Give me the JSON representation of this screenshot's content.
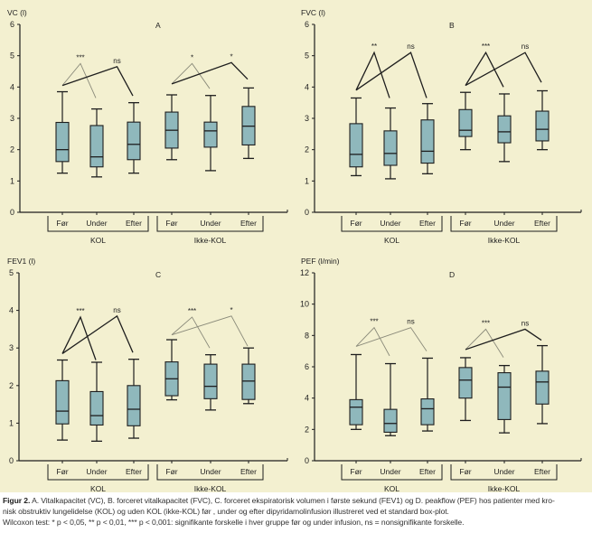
{
  "chart_data": [
    {
      "type": "box",
      "panel": "A",
      "ylabel": "VC (l)",
      "ylim": [
        0,
        6
      ],
      "yticks": [
        0,
        1,
        2,
        3,
        4,
        5,
        6
      ],
      "groups": [
        "KOL",
        "Ikke-KOL"
      ],
      "categories": [
        "Før",
        "Under",
        "Efter"
      ],
      "series": [
        {
          "group": "KOL",
          "category": "Før",
          "min": 1.25,
          "q1": 1.62,
          "median": 2.0,
          "q3": 2.87,
          "max": 3.85
        },
        {
          "group": "KOL",
          "category": "Under",
          "min": 1.13,
          "q1": 1.45,
          "median": 1.77,
          "q3": 2.77,
          "max": 3.3
        },
        {
          "group": "KOL",
          "category": "Efter",
          "min": 1.25,
          "q1": 1.68,
          "median": 2.17,
          "q3": 2.88,
          "max": 3.5
        },
        {
          "group": "Ikke-KOL",
          "category": "Før",
          "min": 1.68,
          "q1": 2.05,
          "median": 2.62,
          "q3": 3.2,
          "max": 3.75
        },
        {
          "group": "Ikke-KOL",
          "category": "Under",
          "min": 1.33,
          "q1": 2.08,
          "median": 2.6,
          "q3": 2.88,
          "max": 3.73
        },
        {
          "group": "Ikke-KOL",
          "category": "Efter",
          "min": 1.72,
          "q1": 2.15,
          "median": 2.75,
          "q3": 3.38,
          "max": 3.97
        }
      ],
      "annotations": [
        {
          "group": "KOL",
          "pair": "Før-Under",
          "label": "***",
          "peak": 4.75,
          "start": 4.05,
          "end": 3.65,
          "dim": true
        },
        {
          "group": "KOL",
          "pair": "Før-Efter",
          "label": "ns",
          "peak": 4.65,
          "start": 4.05,
          "end": 3.72,
          "dim": false
        },
        {
          "group": "Ikke-KOL",
          "pair": "Før-Under",
          "label": "*",
          "peak": 4.75,
          "start": 4.1,
          "end": 3.95,
          "dim": true
        },
        {
          "group": "Ikke-KOL",
          "pair": "Før-Efter",
          "label": "*",
          "peak": 4.78,
          "start": 4.1,
          "end": 4.25,
          "dim": false
        }
      ]
    },
    {
      "type": "box",
      "panel": "B",
      "ylabel": "FVC (l)",
      "ylim": [
        0,
        6
      ],
      "yticks": [
        0,
        1,
        2,
        3,
        4,
        5,
        6
      ],
      "groups": [
        "KOL",
        "Ikke-KOL"
      ],
      "categories": [
        "Før",
        "Under",
        "Efter"
      ],
      "series": [
        {
          "group": "KOL",
          "category": "Før",
          "min": 1.17,
          "q1": 1.45,
          "median": 1.85,
          "q3": 2.83,
          "max": 3.65
        },
        {
          "group": "KOL",
          "category": "Under",
          "min": 1.07,
          "q1": 1.5,
          "median": 1.88,
          "q3": 2.6,
          "max": 3.33
        },
        {
          "group": "KOL",
          "category": "Efter",
          "min": 1.23,
          "q1": 1.57,
          "median": 1.95,
          "q3": 2.95,
          "max": 3.47
        },
        {
          "group": "Ikke-KOL",
          "category": "Før",
          "min": 2.0,
          "q1": 2.42,
          "median": 2.62,
          "q3": 3.28,
          "max": 3.83
        },
        {
          "group": "Ikke-KOL",
          "category": "Under",
          "min": 1.62,
          "q1": 2.22,
          "median": 2.57,
          "q3": 3.08,
          "max": 3.78
        },
        {
          "group": "Ikke-KOL",
          "category": "Efter",
          "min": 2.0,
          "q1": 2.28,
          "median": 2.65,
          "q3": 3.23,
          "max": 3.88
        }
      ],
      "annotations": [
        {
          "group": "KOL",
          "pair": "Før-Under",
          "label": "**",
          "peak": 5.1,
          "start": 3.9,
          "end": 3.65,
          "dim": false
        },
        {
          "group": "KOL",
          "pair": "Før-Efter",
          "label": "ns",
          "peak": 5.1,
          "start": 3.9,
          "end": 3.65,
          "dim": false
        },
        {
          "group": "Ikke-KOL",
          "pair": "Før-Under",
          "label": "***",
          "peak": 5.1,
          "start": 4.05,
          "end": 4.0,
          "dim": false
        },
        {
          "group": "Ikke-KOL",
          "pair": "Før-Efter",
          "label": "ns",
          "peak": 5.1,
          "start": 4.05,
          "end": 4.15,
          "dim": false
        }
      ]
    },
    {
      "type": "box",
      "panel": "C",
      "ylabel": "FEV1 (l)",
      "ylim": [
        0,
        5
      ],
      "yticks": [
        0,
        1,
        2,
        3,
        4,
        5
      ],
      "groups": [
        "KOL",
        "Ikke-KOL"
      ],
      "categories": [
        "Før",
        "Under",
        "Efter"
      ],
      "series": [
        {
          "group": "KOL",
          "category": "Før",
          "min": 0.55,
          "q1": 0.98,
          "median": 1.32,
          "q3": 2.13,
          "max": 2.68
        },
        {
          "group": "KOL",
          "category": "Under",
          "min": 0.52,
          "q1": 0.95,
          "median": 1.2,
          "q3": 1.84,
          "max": 2.62
        },
        {
          "group": "KOL",
          "category": "Efter",
          "min": 0.6,
          "q1": 0.93,
          "median": 1.37,
          "q3": 2.0,
          "max": 2.7
        },
        {
          "group": "Ikke-KOL",
          "category": "Før",
          "min": 1.62,
          "q1": 1.73,
          "median": 2.18,
          "q3": 2.63,
          "max": 3.22
        },
        {
          "group": "Ikke-KOL",
          "category": "Under",
          "min": 1.35,
          "q1": 1.65,
          "median": 1.98,
          "q3": 2.57,
          "max": 2.82
        },
        {
          "group": "Ikke-KOL",
          "category": "Efter",
          "min": 1.52,
          "q1": 1.63,
          "median": 2.12,
          "q3": 2.57,
          "max": 3.0
        }
      ],
      "annotations": [
        {
          "group": "KOL",
          "pair": "Før-Under",
          "label": "***",
          "peak": 3.82,
          "start": 2.85,
          "end": 2.68,
          "dim": false
        },
        {
          "group": "KOL",
          "pair": "Før-Efter",
          "label": "ns",
          "peak": 3.85,
          "start": 2.85,
          "end": 2.88,
          "dim": false
        },
        {
          "group": "Ikke-KOL",
          "pair": "Før-Under",
          "label": "***",
          "peak": 3.82,
          "start": 3.35,
          "end": 3.0,
          "dim": true
        },
        {
          "group": "Ikke-KOL",
          "pair": "Før-Efter",
          "label": "*",
          "peak": 3.85,
          "start": 3.35,
          "end": 3.05,
          "dim": true
        }
      ]
    },
    {
      "type": "box",
      "panel": "D",
      "ylabel": "PEF (l/min)",
      "ylim": [
        0,
        12
      ],
      "yticks": [
        0,
        2,
        4,
        6,
        8,
        10,
        12
      ],
      "groups": [
        "KOL",
        "Ikke-KOL"
      ],
      "categories": [
        "Før",
        "Under",
        "Efter"
      ],
      "series": [
        {
          "group": "KOL",
          "category": "Før",
          "min": 2.0,
          "q1": 2.3,
          "median": 3.42,
          "q3": 3.9,
          "max": 6.78
        },
        {
          "group": "KOL",
          "category": "Under",
          "min": 1.6,
          "q1": 1.82,
          "median": 2.38,
          "q3": 3.28,
          "max": 6.2
        },
        {
          "group": "KOL",
          "category": "Efter",
          "min": 1.9,
          "q1": 2.3,
          "median": 3.32,
          "q3": 3.95,
          "max": 6.55
        },
        {
          "group": "Ikke-KOL",
          "category": "Før",
          "min": 2.57,
          "q1": 4.0,
          "median": 5.15,
          "q3": 5.95,
          "max": 6.58
        },
        {
          "group": "Ikke-KOL",
          "category": "Under",
          "min": 1.78,
          "q1": 2.63,
          "median": 4.7,
          "q3": 5.62,
          "max": 6.08
        },
        {
          "group": "Ikke-KOL",
          "category": "Efter",
          "min": 2.37,
          "q1": 3.62,
          "median": 5.03,
          "q3": 5.72,
          "max": 7.35
        }
      ],
      "annotations": [
        {
          "group": "KOL",
          "pair": "Før-Under",
          "label": "***",
          "peak": 8.5,
          "start": 7.3,
          "end": 6.7,
          "dim": true
        },
        {
          "group": "KOL",
          "pair": "Før-Efter",
          "label": "ns",
          "peak": 8.5,
          "start": 7.3,
          "end": 7.0,
          "dim": true
        },
        {
          "group": "Ikke-KOL",
          "pair": "Før-Under",
          "label": "***",
          "peak": 8.4,
          "start": 7.1,
          "end": 6.6,
          "dim": true
        },
        {
          "group": "Ikke-KOL",
          "pair": "Før-Efter",
          "label": "ns",
          "peak": 8.4,
          "start": 7.1,
          "end": 7.7,
          "dim": false
        }
      ]
    }
  ],
  "colors": {
    "background": "#f3f0d0",
    "box_fill": "#8fb8bc",
    "line": "#1e1e1e",
    "annotation_dim": "#8a8a7a"
  },
  "caption": {
    "lead": "Figur 2.",
    "line1": " A. Vitalkapacitet (VC), B. forceret vitalkapacitet (FVC), C. forceret ekspiratorisk volumen i første sekund (FEV1) og D. peakflow (PEF) hos patienter med kro-",
    "line2": "nisk obstruktiv lungelidelse (KOL) og uden KOL (ikke-KOL) før , under og efter dipyridamolinfusion illustreret ved et standard box-plot.",
    "line3": "Wilcoxon test: * p < 0,05, ** p < 0,01, *** p < 0,001: signifikante forskelle i hver gruppe før og under infusion, ns = nonsignifikante forskelle."
  }
}
